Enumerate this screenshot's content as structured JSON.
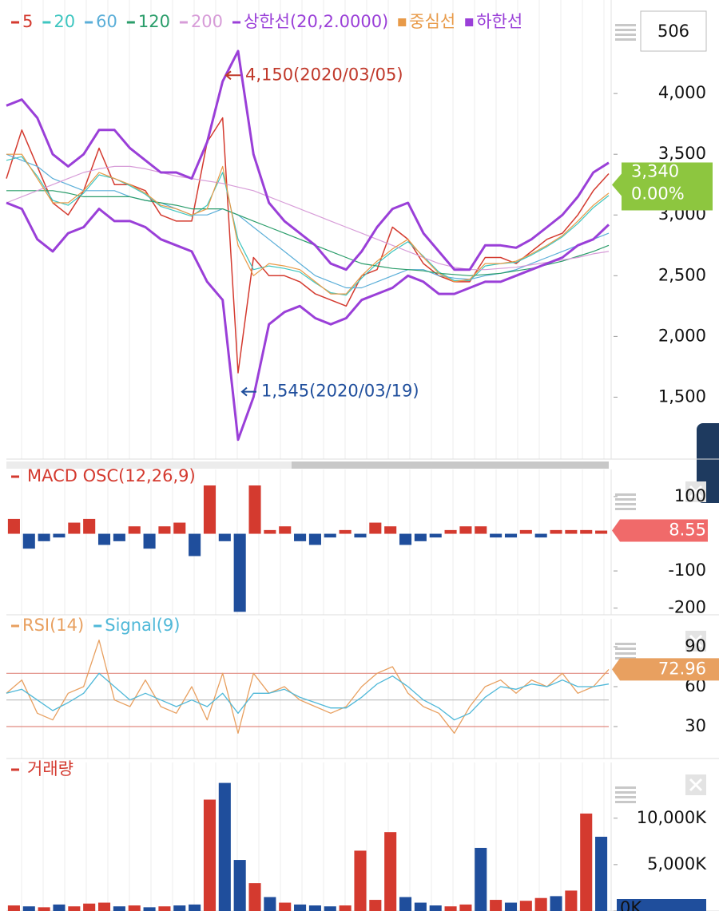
{
  "toolbar": {
    "count": "506"
  },
  "chart_data": [
    {
      "type": "line",
      "ylim": [
        990,
        4770
      ],
      "yticks": [
        {
          "value": 1500,
          "label": "1,500"
        },
        {
          "value": 2000,
          "label": "2,000"
        },
        {
          "value": 2500,
          "label": "2,500"
        },
        {
          "value": 3000,
          "label": "3,000"
        },
        {
          "value": 3500,
          "label": "3,500"
        },
        {
          "value": 4000,
          "label": "4,000"
        }
      ],
      "series": [
        {
          "name": "5",
          "color": "#d43a2f",
          "width": 1.5,
          "marker": "dash",
          "values": [
            3300,
            3700,
            3400,
            3100,
            3000,
            3200,
            3550,
            3250,
            3250,
            3200,
            3000,
            2950,
            2950,
            3600,
            3800,
            1700,
            2650,
            2500,
            2500,
            2450,
            2350,
            2300,
            2250,
            2500,
            2550,
            2900,
            2800,
            2600,
            2500,
            2450,
            2450,
            2650,
            2650,
            2600,
            2700,
            2800,
            2850,
            3000,
            3200,
            3340
          ]
        },
        {
          "name": "20",
          "color": "#3ec6c0",
          "width": 1.2,
          "marker": "dash",
          "values": [
            3450,
            3480,
            3320,
            3120,
            3080,
            3180,
            3330,
            3300,
            3240,
            3170,
            3070,
            3030,
            2990,
            3080,
            3350,
            2800,
            2550,
            2580,
            2560,
            2530,
            2440,
            2360,
            2340,
            2480,
            2600,
            2700,
            2780,
            2660,
            2530,
            2460,
            2460,
            2580,
            2600,
            2610,
            2670,
            2740,
            2820,
            2930,
            3060,
            3160
          ]
        },
        {
          "name": "60",
          "color": "#5aaed8",
          "width": 1.2,
          "marker": "dash",
          "values": [
            3500,
            3450,
            3400,
            3300,
            3250,
            3200,
            3200,
            3200,
            3150,
            3120,
            3100,
            3050,
            3000,
            3000,
            3050,
            3000,
            2900,
            2800,
            2700,
            2600,
            2500,
            2450,
            2400,
            2400,
            2450,
            2500,
            2550,
            2550,
            2500,
            2480,
            2470,
            2500,
            2520,
            2550,
            2600,
            2650,
            2700,
            2750,
            2800,
            2850
          ]
        },
        {
          "name": "120",
          "color": "#2a9d6a",
          "width": 1.2,
          "marker": "dash",
          "values": [
            3200,
            3200,
            3200,
            3200,
            3180,
            3150,
            3150,
            3150,
            3150,
            3120,
            3100,
            3080,
            3050,
            3050,
            3050,
            3000,
            2950,
            2900,
            2850,
            2800,
            2750,
            2700,
            2650,
            2600,
            2580,
            2560,
            2550,
            2540,
            2520,
            2510,
            2500,
            2510,
            2520,
            2540,
            2560,
            2590,
            2620,
            2660,
            2700,
            2750
          ]
        },
        {
          "name": "200",
          "color": "#d79cd8",
          "width": 1.2,
          "marker": "dash",
          "values": [
            3100,
            3150,
            3200,
            3250,
            3300,
            3350,
            3380,
            3400,
            3400,
            3380,
            3350,
            3320,
            3300,
            3280,
            3260,
            3230,
            3200,
            3150,
            3100,
            3050,
            3000,
            2950,
            2900,
            2850,
            2800,
            2750,
            2700,
            2650,
            2600,
            2570,
            2550,
            2550,
            2560,
            2570,
            2590,
            2610,
            2630,
            2650,
            2680,
            2700
          ]
        },
        {
          "name": "상한선(20,2.0000)",
          "color": "#9a3fd8",
          "width": 3,
          "marker": "dash",
          "values": [
            3900,
            3950,
            3800,
            3500,
            3400,
            3500,
            3700,
            3700,
            3550,
            3450,
            3350,
            3350,
            3300,
            3600,
            4100,
            4350,
            3500,
            3100,
            2950,
            2850,
            2750,
            2600,
            2550,
            2700,
            2900,
            3050,
            3100,
            2850,
            2700,
            2550,
            2550,
            2750,
            2750,
            2730,
            2800,
            2900,
            3000,
            3150,
            3350,
            3430
          ]
        },
        {
          "name": "중심선",
          "color": "#e89a48",
          "width": 1.2,
          "marker": "square",
          "values": [
            3500,
            3500,
            3300,
            3100,
            3100,
            3200,
            3350,
            3300,
            3250,
            3180,
            3080,
            3050,
            3000,
            3050,
            3400,
            2750,
            2500,
            2600,
            2580,
            2550,
            2450,
            2350,
            2350,
            2500,
            2620,
            2720,
            2800,
            2650,
            2520,
            2450,
            2470,
            2600,
            2600,
            2620,
            2680,
            2750,
            2830,
            2950,
            3080,
            3180
          ]
        },
        {
          "name": "하한선",
          "color": "#9a3fd8",
          "width": 3,
          "marker": "square",
          "values": [
            3100,
            3050,
            2800,
            2700,
            2850,
            2900,
            3050,
            2950,
            2950,
            2900,
            2800,
            2750,
            2700,
            2450,
            2300,
            1150,
            1500,
            2100,
            2200,
            2250,
            2150,
            2100,
            2150,
            2300,
            2350,
            2400,
            2500,
            2450,
            2350,
            2350,
            2400,
            2450,
            2450,
            2500,
            2550,
            2600,
            2650,
            2750,
            2800,
            2920
          ]
        }
      ],
      "annotations": [
        {
          "text": "4,150(2020/03/05)",
          "value": 4150,
          "color": "#c0392b"
        },
        {
          "text": "1,545(2020/03/19)",
          "value": 1545,
          "color": "#1f4e9c"
        }
      ],
      "last_price": {
        "value": 3340,
        "label": "3,340"
      },
      "change": "0.00%"
    },
    {
      "type": "bar",
      "title": "MACD OSC(12,26,9)",
      "title_color": "#d43a2f",
      "ylim": [
        -218,
        173
      ],
      "yticks": [
        -200,
        -100,
        100
      ],
      "up_color": "#d43a2f",
      "down_color": "#1f4e9c",
      "values": [
        40,
        -40,
        -20,
        -10,
        30,
        40,
        -30,
        -20,
        20,
        -40,
        20,
        30,
        -60,
        130,
        -20,
        -210,
        130,
        10,
        20,
        -20,
        -30,
        -10,
        10,
        -10,
        30,
        20,
        -30,
        -20,
        -10,
        10,
        20,
        20,
        -10,
        -10,
        10,
        -10,
        10,
        10,
        10,
        8.55
      ]
    },
    {
      "type": "line",
      "ylim": [
        6,
        111
      ],
      "yticks": [
        30,
        60,
        90
      ],
      "hlines": [
        {
          "value": 70,
          "color": "#e08a80"
        },
        {
          "value": 50,
          "color": "#bbbbbb"
        },
        {
          "value": 30,
          "color": "#e08a80"
        }
      ],
      "series": [
        {
          "name": "RSI(14)",
          "color": "#e8a060",
          "width": 1.3,
          "marker": "dash",
          "values": [
            55,
            65,
            40,
            35,
            55,
            60,
            95,
            50,
            45,
            65,
            45,
            40,
            60,
            35,
            70,
            25,
            70,
            55,
            60,
            50,
            45,
            40,
            45,
            60,
            70,
            75,
            55,
            45,
            40,
            25,
            45,
            60,
            65,
            55,
            65,
            60,
            70,
            55,
            60,
            72.96
          ]
        },
        {
          "name": "Signal(9)",
          "color": "#4fb8d8",
          "width": 1.3,
          "marker": "dash",
          "values": [
            55,
            58,
            50,
            42,
            48,
            55,
            70,
            60,
            50,
            55,
            50,
            45,
            50,
            45,
            55,
            40,
            55,
            55,
            58,
            52,
            48,
            44,
            44,
            52,
            62,
            68,
            60,
            50,
            44,
            35,
            40,
            52,
            60,
            58,
            62,
            60,
            65,
            60,
            60,
            62
          ]
        }
      ]
    },
    {
      "type": "bar",
      "title": "거래량",
      "title_color": "#d43a2f",
      "ylim": [
        0,
        16000
      ],
      "yticks": [
        {
          "value": 0,
          "label": "0K"
        },
        {
          "value": 5000,
          "label": "5,000K"
        },
        {
          "value": 10000,
          "label": "10,000K"
        }
      ],
      "values": [
        600,
        500,
        400,
        700,
        500,
        800,
        900,
        500,
        600,
        400,
        500,
        600,
        700,
        12000,
        13800,
        5500,
        3000,
        1500,
        900,
        700,
        600,
        500,
        600,
        6500,
        1200,
        8500,
        1500,
        900,
        600,
        500,
        700,
        6800,
        1200,
        900,
        1100,
        1400,
        1600,
        2200,
        10500,
        8000
      ],
      "colors": [
        "#d43a2f",
        "#1f4e9c",
        "#d43a2f",
        "#1f4e9c",
        "#d43a2f",
        "#d43a2f",
        "#d43a2f",
        "#1f4e9c",
        "#d43a2f",
        "#1f4e9c",
        "#d43a2f",
        "#1f4e9c",
        "#1f4e9c",
        "#d43a2f",
        "#1f4e9c",
        "#1f4e9c",
        "#d43a2f",
        "#1f4e9c",
        "#d43a2f",
        "#1f4e9c",
        "#1f4e9c",
        "#1f4e9c",
        "#d43a2f",
        "#d43a2f",
        "#d43a2f",
        "#d43a2f",
        "#1f4e9c",
        "#1f4e9c",
        "#1f4e9c",
        "#d43a2f",
        "#d43a2f",
        "#1f4e9c",
        "#d43a2f",
        "#1f4e9c",
        "#d43a2f",
        "#d43a2f",
        "#1f4e9c",
        "#d43a2f",
        "#d43a2f",
        "#1f4e9c"
      ]
    }
  ]
}
